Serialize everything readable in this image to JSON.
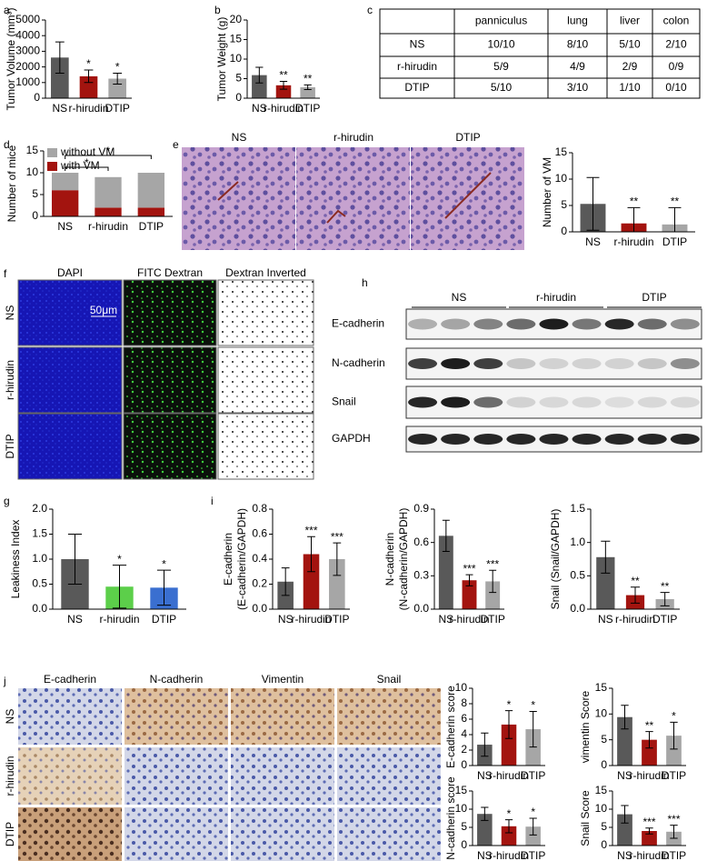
{
  "panel_labels": [
    "a",
    "b",
    "c",
    "d",
    "e",
    "f",
    "g",
    "h",
    "i",
    "j"
  ],
  "chart_data": [
    {
      "type": "bar",
      "y_label": "Tumor Volume (mm³)",
      "categories": [
        "NS",
        "r-hirudin",
        "DTIP"
      ],
      "values": [
        2600,
        1400,
        1250
      ],
      "errors": [
        1000,
        400,
        350
      ],
      "significance": [
        null,
        "*",
        "*"
      ],
      "colors": [
        "#595959",
        "#a3140f",
        "#a6a6a6"
      ],
      "ylim": [
        0,
        5000
      ],
      "yticks": [
        0,
        1000,
        2000,
        3000,
        4000,
        5000
      ]
    },
    {
      "type": "bar",
      "y_label": "Tumor Weight (g)",
      "categories": [
        "NS",
        "r-hirudin",
        "DTIP"
      ],
      "values": [
        5.9,
        3.3,
        2.8
      ],
      "errors": [
        2.0,
        1.0,
        0.6
      ],
      "significance": [
        null,
        "**",
        "**"
      ],
      "colors": [
        "#595959",
        "#a3140f",
        "#a6a6a6"
      ],
      "ylim": [
        0,
        20
      ],
      "yticks": [
        0,
        5,
        10,
        15,
        20
      ]
    },
    {
      "type": "stacked_bar",
      "y_label": "Number of mice",
      "categories": [
        "NS",
        "r-hirudin",
        "DTIP"
      ],
      "series": [
        {
          "name": "with VM",
          "color": "#a3140f",
          "values": [
            6,
            2,
            2
          ]
        },
        {
          "name": "without VM",
          "color": "#a6a6a6",
          "values": [
            4,
            7,
            8
          ]
        }
      ],
      "significance": [
        "*",
        "*"
      ],
      "ylim": [
        0,
        15
      ],
      "yticks": [
        0,
        5,
        10,
        15
      ]
    },
    {
      "type": "bar",
      "y_label": "Number of VM",
      "categories": [
        "NS",
        "r-hirudin",
        "DTIP"
      ],
      "values": [
        5.3,
        1.6,
        1.4
      ],
      "errors": [
        5.0,
        3.0,
        3.2
      ],
      "significance": [
        null,
        "**",
        "**"
      ],
      "colors": [
        "#595959",
        "#a3140f",
        "#a6a6a6"
      ],
      "ylim": [
        0,
        15
      ],
      "yticks": [
        0,
        5,
        10,
        15
      ]
    },
    {
      "type": "bar",
      "y_label": "Leakiness Index",
      "categories": [
        "NS",
        "r-hirudin",
        "DTIP"
      ],
      "values": [
        1.0,
        0.45,
        0.43
      ],
      "errors": [
        0.5,
        0.43,
        0.35
      ],
      "significance": [
        null,
        "*",
        "*"
      ],
      "colors": [
        "#595959",
        "#5ccf4a",
        "#3a6fd0"
      ],
      "ylim": [
        0,
        2
      ],
      "yticks": [
        {
          "value": 0,
          "label": "0.0"
        },
        0.5,
        {
          "value": 1,
          "label": "1.0"
        },
        1.5,
        {
          "value": 2,
          "label": "2.0"
        }
      ]
    },
    {
      "type": "bar",
      "y_label": [
        "E-cadherin",
        "(E-cadherin/GAPDH)"
      ],
      "categories": [
        "NS",
        "r-hirudin",
        "DTIP"
      ],
      "values": [
        0.22,
        0.44,
        0.4
      ],
      "errors": [
        0.11,
        0.14,
        0.13
      ],
      "significance": [
        null,
        "***",
        "***"
      ],
      "colors": [
        "#595959",
        "#a3140f",
        "#a6a6a6"
      ],
      "ylim": [
        0,
        0.8
      ],
      "yticks": [
        {
          "value": 0,
          "label": "0.0"
        },
        0.2,
        0.4,
        0.6,
        0.8
      ]
    },
    {
      "type": "bar",
      "y_label": [
        "N-cadherin",
        "(N-cadherin/GAPDH)"
      ],
      "categories": [
        "NS",
        "r-hirudin",
        "DTIP"
      ],
      "values": [
        0.66,
        0.26,
        0.25
      ],
      "errors": [
        0.14,
        0.05,
        0.1
      ],
      "significance": [
        null,
        "***",
        "***"
      ],
      "colors": [
        "#595959",
        "#a3140f",
        "#a6a6a6"
      ],
      "ylim": [
        0,
        0.9
      ],
      "yticks": [
        {
          "value": 0,
          "label": "0.0"
        },
        0.3,
        0.6,
        0.9
      ]
    },
    {
      "type": "bar",
      "y_label": "Snail (Snail/GAPDH)",
      "categories": [
        "NS",
        "r-hirudin",
        "DTIP"
      ],
      "values": [
        0.78,
        0.21,
        0.15
      ],
      "errors": [
        0.24,
        0.12,
        0.1
      ],
      "significance": [
        null,
        "**",
        "**"
      ],
      "colors": [
        "#595959",
        "#a3140f",
        "#a6a6a6"
      ],
      "ylim": [
        0,
        1.5
      ],
      "yticks": [
        {
          "value": 0,
          "label": "0.0"
        },
        0.5,
        {
          "value": 1,
          "label": "1.0"
        },
        1.5
      ]
    },
    {
      "type": "bar",
      "y_label": "E-cadherin score",
      "categories": [
        "NS",
        "r-hirudin",
        "DTIP"
      ],
      "values": [
        2.7,
        5.3,
        4.7
      ],
      "errors": [
        1.5,
        1.8,
        2.3
      ],
      "significance": [
        null,
        "*",
        "*"
      ],
      "colors": [
        "#595959",
        "#a3140f",
        "#a6a6a6"
      ],
      "ylim": [
        0,
        10
      ],
      "yticks": [
        0,
        2,
        4,
        6,
        8,
        10
      ]
    },
    {
      "type": "bar",
      "y_label": "vimentin Score",
      "categories": [
        "NS",
        "r-hirudin",
        "DTIP"
      ],
      "values": [
        9.4,
        5.0,
        5.8
      ],
      "errors": [
        2.3,
        1.6,
        2.6
      ],
      "significance": [
        null,
        "**",
        "*"
      ],
      "colors": [
        "#595959",
        "#a3140f",
        "#a6a6a6"
      ],
      "ylim": [
        0,
        15
      ],
      "yticks": [
        0,
        5,
        10,
        15
      ]
    },
    {
      "type": "bar",
      "y_label": "N-cadherin score",
      "categories": [
        "NS",
        "r-hirudin",
        "DTIP"
      ],
      "values": [
        8.7,
        5.3,
        5.2
      ],
      "errors": [
        1.8,
        1.8,
        2.3
      ],
      "significance": [
        null,
        "*",
        "*"
      ],
      "colors": [
        "#595959",
        "#a3140f",
        "#a6a6a6"
      ],
      "ylim": [
        0,
        15
      ],
      "yticks": [
        0,
        5,
        10,
        15
      ]
    },
    {
      "type": "bar",
      "y_label": "Snail Score",
      "categories": [
        "NS",
        "r-hirudin",
        "DTIP"
      ],
      "values": [
        8.6,
        4.0,
        3.8
      ],
      "errors": [
        2.4,
        0.8,
        1.8
      ],
      "significance": [
        null,
        "***",
        "***"
      ],
      "colors": [
        "#595959",
        "#a3140f",
        "#a6a6a6"
      ],
      "ylim": [
        0,
        15
      ],
      "yticks": [
        0,
        5,
        10,
        15
      ]
    }
  ],
  "table": {
    "header": [
      "panniculus",
      "lung",
      "liver",
      "colon"
    ],
    "rows": [
      [
        "NS",
        "10/10",
        "8/10",
        "5/10",
        "2/10"
      ],
      [
        "r-hirudin",
        "5/9",
        "4/9",
        "2/9",
        "0/9"
      ],
      [
        "DTIP",
        "5/10",
        "3/10",
        "1/10",
        "0/10"
      ]
    ]
  },
  "figure_e": {
    "columns": [
      "NS",
      "r-hirudin",
      "DTIP"
    ]
  },
  "figure_f": {
    "columns": [
      "DAPI",
      "FITC Dextran",
      "Dextran Inverted"
    ],
    "rows": [
      "NS",
      "r-hirudin",
      "DTIP"
    ],
    "scale_bar": "50μm"
  },
  "figure_h": {
    "groups": [
      "NS",
      "r-hirudin",
      "DTIP"
    ],
    "rows": [
      "E-cadherin",
      "N-cadherin",
      "Snail",
      "GAPDH"
    ]
  },
  "figure_j": {
    "columns": [
      "E-cadherin",
      "N-cadherin",
      "Vimentin",
      "Snail"
    ],
    "rows": [
      "NS",
      "r-hirudin",
      "DTIP"
    ]
  }
}
